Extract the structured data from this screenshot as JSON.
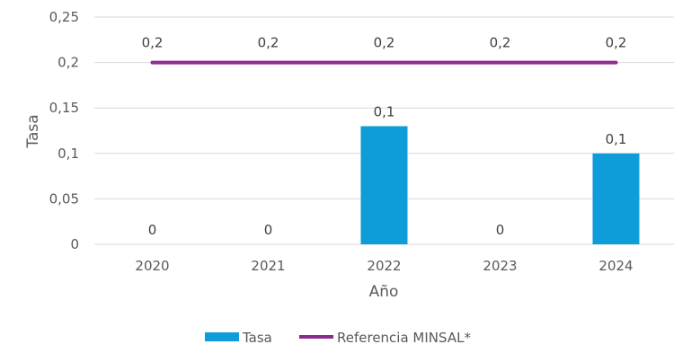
{
  "chart_data": {
    "type": "bar",
    "categories": [
      "2020",
      "2021",
      "2022",
      "2023",
      "2024"
    ],
    "series": [
      {
        "name": "Tasa",
        "kind": "bar",
        "color": "#0E9DD8",
        "values": [
          0,
          0,
          0.13,
          0,
          0.1
        ],
        "data_labels": [
          "0",
          "0",
          "0,1",
          "0",
          "0,1"
        ]
      },
      {
        "name": "Referencia MINSAL*",
        "kind": "line",
        "color": "#8E2C8E",
        "values": [
          0.2,
          0.2,
          0.2,
          0.2,
          0.2
        ],
        "data_labels": [
          "0,2",
          "0,2",
          "0,2",
          "0,2",
          "0,2"
        ]
      }
    ],
    "ylim": [
      0,
      0.25
    ],
    "y_ticks": [
      0,
      0.05,
      0.1,
      0.15,
      0.2,
      0.25
    ],
    "y_tick_labels": [
      "0",
      "0,05",
      "0,1",
      "0,15",
      "0,2",
      "0,25"
    ],
    "xlabel": "Año",
    "ylabel": "Tasa",
    "grid": true,
    "legend_position": "bottom"
  }
}
